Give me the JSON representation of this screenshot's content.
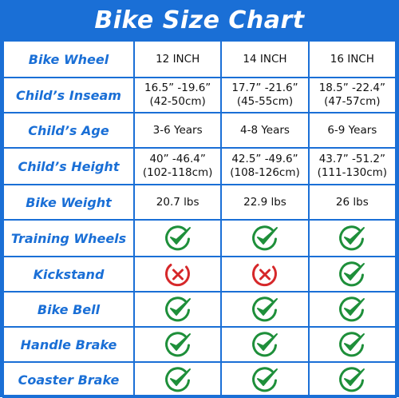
{
  "title": "Bike Size Chart",
  "colors": {
    "accent": "#1a6fd6",
    "check": "#1e8f3a",
    "cross": "#d6282a"
  },
  "sizes": [
    {
      "wheel": "12 INCH",
      "inseam": [
        "16.5” -19.6”",
        "(42-50cm)"
      ],
      "age": "3-6 Years",
      "height": [
        "40” -46.4”",
        "(102-118cm)"
      ],
      "weight": "20.7 lbs"
    },
    {
      "wheel": "14 INCH",
      "inseam": [
        "17.7” -21.6”",
        "(45-55cm)"
      ],
      "age": "4-8 Years",
      "height": [
        "42.5” -49.6”",
        "(108-126cm)"
      ],
      "weight": "22.9 lbs"
    },
    {
      "wheel": "16 INCH",
      "inseam": [
        "18.5” -22.4”",
        "(47-57cm)"
      ],
      "age": "6-9 Years",
      "height": [
        "43.7” -51.2”",
        "(111-130cm)"
      ],
      "weight": "26 lbs"
    }
  ],
  "rows": {
    "wheel": "Bike Wheel",
    "inseam": "Child’s Inseam",
    "age": "Child’s Age",
    "height": "Child’s Height",
    "weight": "Bike Weight"
  },
  "features": [
    {
      "label": "Training Wheels",
      "values": [
        true,
        true,
        true
      ]
    },
    {
      "label": "Kickstand",
      "values": [
        false,
        false,
        true
      ]
    },
    {
      "label": "Bike Bell",
      "values": [
        true,
        true,
        true
      ]
    },
    {
      "label": "Handle Brake",
      "values": [
        true,
        true,
        true
      ]
    },
    {
      "label": "Coaster Brake",
      "values": [
        true,
        true,
        true
      ]
    }
  ],
  "icons": {
    "yes": "check-circle-icon",
    "no": "cross-circle-icon"
  }
}
